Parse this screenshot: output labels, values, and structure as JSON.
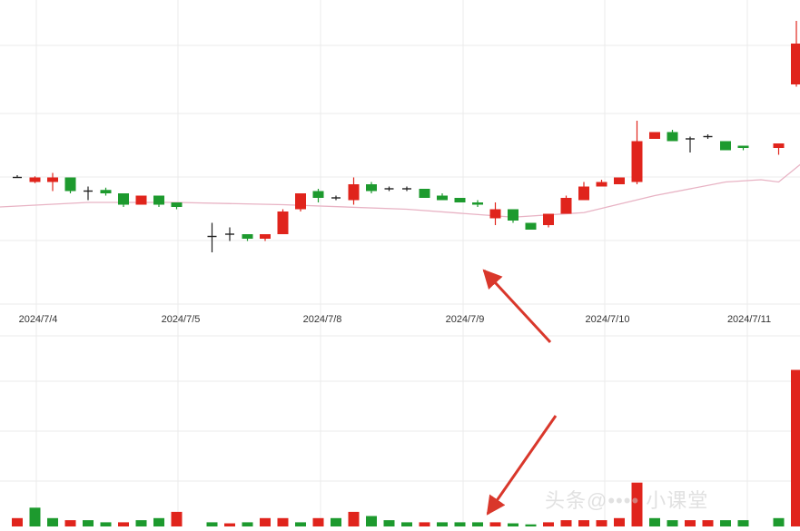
{
  "chart_data": {
    "type": "candlestick",
    "title": "",
    "xlabel": "",
    "ylabel": "",
    "date_labels": [
      "2024/7/4",
      "2024/7/5",
      "2024/7/8",
      "2024/7/9",
      "2024/7/10",
      "2024/7/11"
    ],
    "price_range": [
      0,
      100
    ],
    "volume_range": [
      0,
      100
    ],
    "colors": {
      "up": "#e0241c",
      "down": "#1d9a2e",
      "doji": "#222222",
      "ma_line": "#e8b3c4",
      "grid": "#ebebeb",
      "annotation_arrow": "#d9372b"
    },
    "candles": [
      {
        "o": 53,
        "c": 53,
        "h": 54,
        "l": 53
      },
      {
        "o": 51,
        "c": 53,
        "h": 53.5,
        "l": 50.5
      },
      {
        "o": 51,
        "c": 53,
        "h": 55,
        "l": 47
      },
      {
        "o": 53,
        "c": 47,
        "h": 53,
        "l": 46
      },
      {
        "o": 47,
        "c": 47,
        "h": 49,
        "l": 43
      },
      {
        "o": 47.5,
        "c": 46,
        "h": 48.5,
        "l": 45
      },
      {
        "o": 46,
        "c": 41,
        "h": 46,
        "l": 40
      },
      {
        "o": 41,
        "c": 45,
        "h": 45,
        "l": 41
      },
      {
        "o": 45,
        "c": 41,
        "h": 45,
        "l": 40
      },
      {
        "o": 42,
        "c": 40,
        "h": 42,
        "l": 39
      },
      {
        "o": null,
        "c": null,
        "h": null,
        "l": null
      },
      {
        "o": 27,
        "c": 27,
        "h": 33,
        "l": 20
      },
      {
        "o": 28,
        "c": 28,
        "h": 31,
        "l": 25
      },
      {
        "o": 28,
        "c": 26,
        "h": 28,
        "l": 25
      },
      {
        "o": 26,
        "c": 28,
        "h": 28,
        "l": 25
      },
      {
        "o": 28,
        "c": 38,
        "h": 39,
        "l": 28
      },
      {
        "o": 39,
        "c": 46,
        "h": 46,
        "l": 38
      },
      {
        "o": 47,
        "c": 44,
        "h": 48,
        "l": 42
      },
      {
        "o": 44,
        "c": 44,
        "h": 45,
        "l": 43
      },
      {
        "o": 43,
        "c": 50,
        "h": 53,
        "l": 41
      },
      {
        "o": 50,
        "c": 47,
        "h": 51,
        "l": 46
      },
      {
        "o": 48,
        "c": 48,
        "h": 49,
        "l": 47
      },
      {
        "o": 48,
        "c": 48,
        "h": 49,
        "l": 47
      },
      {
        "o": 48,
        "c": 44,
        "h": 48,
        "l": 44
      },
      {
        "o": 45,
        "c": 43,
        "h": 46,
        "l": 43
      },
      {
        "o": 44,
        "c": 42,
        "h": 44,
        "l": 42
      },
      {
        "o": 42,
        "c": 41,
        "h": 43,
        "l": 40
      },
      {
        "o": 35,
        "c": 39,
        "h": 42,
        "l": 32
      },
      {
        "o": 39,
        "c": 34,
        "h": 39,
        "l": 33
      },
      {
        "o": 33,
        "c": 30,
        "h": 33,
        "l": 30
      },
      {
        "o": 32,
        "c": 37,
        "h": 37,
        "l": 31
      },
      {
        "o": 37,
        "c": 44,
        "h": 45,
        "l": 37
      },
      {
        "o": 43,
        "c": 49,
        "h": 51,
        "l": 43
      },
      {
        "o": 49,
        "c": 51,
        "h": 52,
        "l": 49
      },
      {
        "o": 50,
        "c": 53,
        "h": 53,
        "l": 50
      },
      {
        "o": 51,
        "c": 69,
        "h": 78,
        "l": 50
      },
      {
        "o": 70,
        "c": 73,
        "h": 73,
        "l": 70
      },
      {
        "o": 73,
        "c": 69,
        "h": 74,
        "l": 69
      },
      {
        "o": 70,
        "c": 70,
        "h": 71,
        "l": 64
      },
      {
        "o": 71,
        "c": 71,
        "h": 72,
        "l": 70
      },
      {
        "o": 69,
        "c": 65,
        "h": 69,
        "l": 65
      },
      {
        "o": 67,
        "c": 66,
        "h": 67,
        "l": 65
      },
      {
        "o": null,
        "c": null,
        "h": null,
        "l": null
      },
      {
        "o": 66,
        "c": 68,
        "h": 68,
        "l": 63
      },
      {
        "o": 94,
        "c": 112,
        "h": 122,
        "l": 93
      },
      {
        "o": 112,
        "c": 117,
        "h": 125,
        "l": 111
      },
      {
        "o": 116,
        "c": 110,
        "h": 118,
        "l": 109
      },
      {
        "o": 110,
        "c": 110,
        "h": 111,
        "l": 110
      }
    ],
    "volume": [
      {
        "v": 4,
        "dir": "up"
      },
      {
        "v": 9,
        "dir": "down"
      },
      {
        "v": 4,
        "dir": "down"
      },
      {
        "v": 3,
        "dir": "up"
      },
      {
        "v": 3,
        "dir": "down"
      },
      {
        "v": 2,
        "dir": "down"
      },
      {
        "v": 2,
        "dir": "up"
      },
      {
        "v": 3,
        "dir": "down"
      },
      {
        "v": 4,
        "dir": "down"
      },
      {
        "v": 7,
        "dir": "up"
      },
      {
        "v": 0,
        "dir": "up"
      },
      {
        "v": 2,
        "dir": "down"
      },
      {
        "v": 1.5,
        "dir": "up"
      },
      {
        "v": 2,
        "dir": "down"
      },
      {
        "v": 4,
        "dir": "up"
      },
      {
        "v": 4,
        "dir": "up"
      },
      {
        "v": 2,
        "dir": "down"
      },
      {
        "v": 4,
        "dir": "up"
      },
      {
        "v": 4,
        "dir": "down"
      },
      {
        "v": 7,
        "dir": "up"
      },
      {
        "v": 5,
        "dir": "down"
      },
      {
        "v": 3,
        "dir": "down"
      },
      {
        "v": 2,
        "dir": "down"
      },
      {
        "v": 2,
        "dir": "up"
      },
      {
        "v": 2,
        "dir": "down"
      },
      {
        "v": 2,
        "dir": "down"
      },
      {
        "v": 2,
        "dir": "down"
      },
      {
        "v": 2,
        "dir": "up"
      },
      {
        "v": 1.5,
        "dir": "down"
      },
      {
        "v": 1,
        "dir": "down"
      },
      {
        "v": 2,
        "dir": "up"
      },
      {
        "v": 3,
        "dir": "up"
      },
      {
        "v": 3,
        "dir": "up"
      },
      {
        "v": 3,
        "dir": "up"
      },
      {
        "v": 4,
        "dir": "up"
      },
      {
        "v": 21,
        "dir": "up"
      },
      {
        "v": 4,
        "dir": "down"
      },
      {
        "v": 3,
        "dir": "down"
      },
      {
        "v": 3,
        "dir": "up"
      },
      {
        "v": 3,
        "dir": "up"
      },
      {
        "v": 3,
        "dir": "down"
      },
      {
        "v": 3,
        "dir": "down"
      },
      {
        "v": 0,
        "dir": "up"
      },
      {
        "v": 4,
        "dir": "down"
      },
      {
        "v": 75,
        "dir": "up"
      },
      {
        "v": 20,
        "dir": "up"
      },
      {
        "v": 8,
        "dir": "down"
      },
      {
        "v": 3,
        "dir": "down"
      }
    ],
    "moving_average": [
      {
        "i": -1,
        "v": 40
      },
      {
        "i": 4,
        "v": 42
      },
      {
        "i": 9,
        "v": 42
      },
      {
        "i": 15,
        "v": 41
      },
      {
        "i": 22,
        "v": 39
      },
      {
        "i": 28,
        "v": 35.5
      },
      {
        "i": 32,
        "v": 37.5
      },
      {
        "i": 36,
        "v": 45
      },
      {
        "i": 40,
        "v": 51
      },
      {
        "i": 42,
        "v": 52
      },
      {
        "i": 43,
        "v": 51
      },
      {
        "i": 46,
        "v": 70
      },
      {
        "i": 48,
        "v": 76
      }
    ]
  },
  "watermark": "头条@•••• 小课堂"
}
